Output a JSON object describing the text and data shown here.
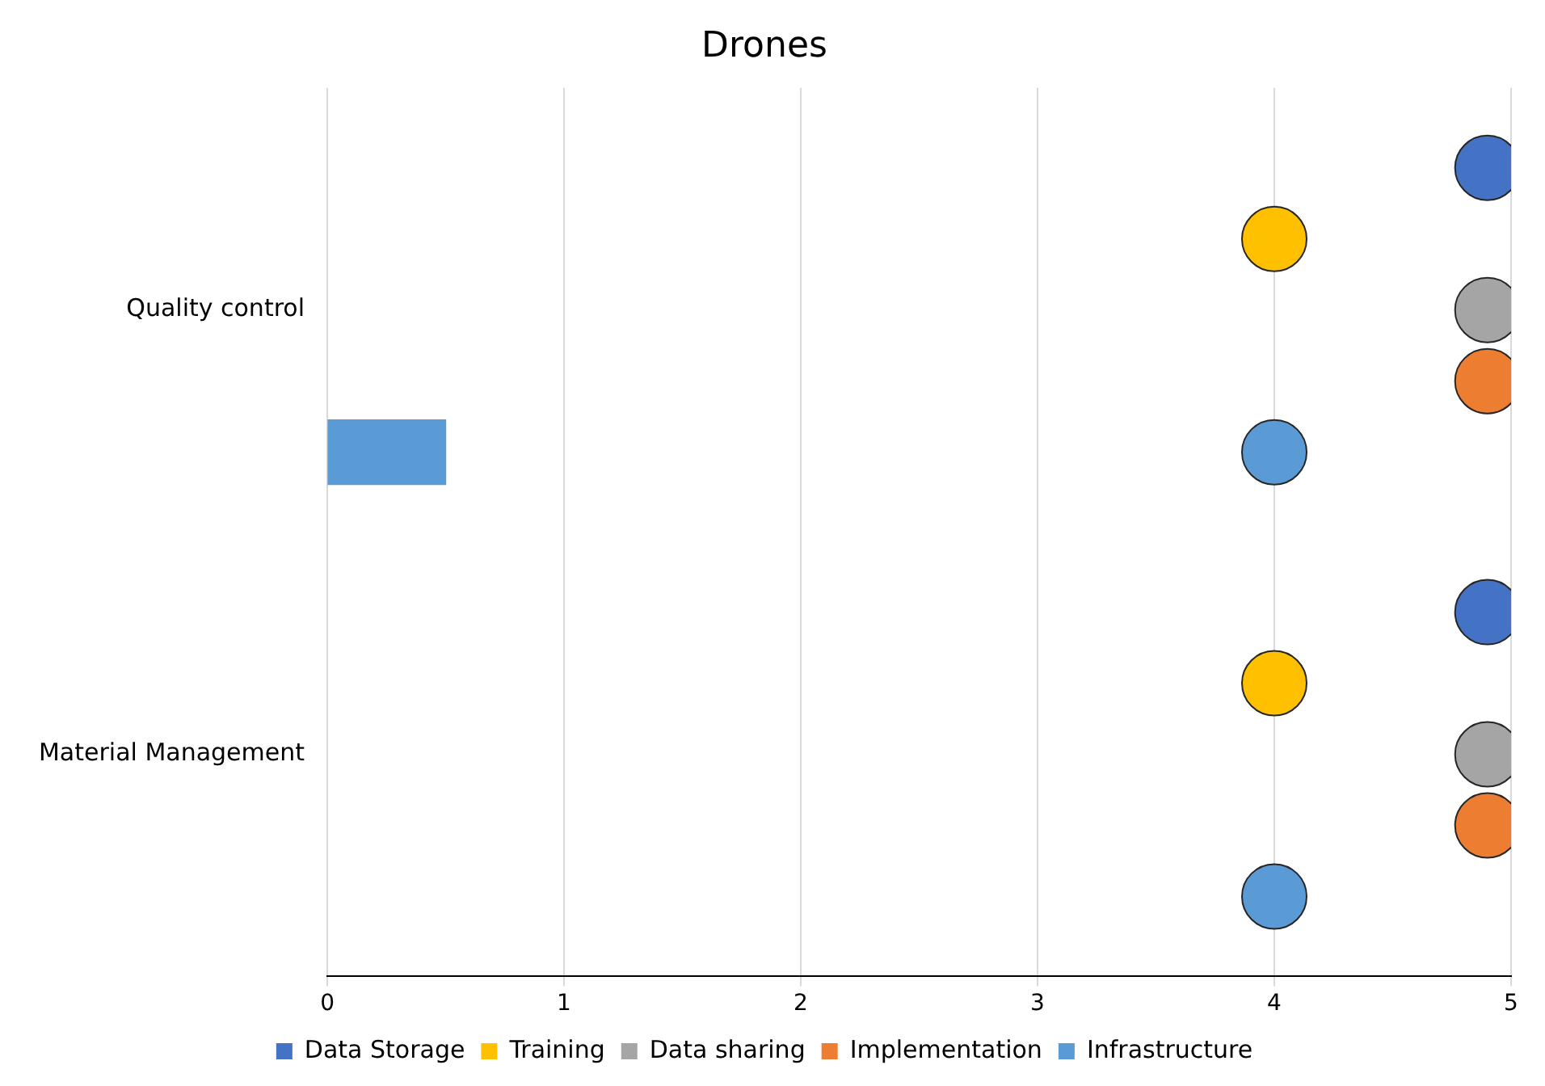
{
  "chart_data": {
    "type": "bar",
    "orientation": "horizontal",
    "title": "Drones",
    "categories": [
      "Quality control",
      "Material Management"
    ],
    "series": [
      {
        "name": "Data Storage",
        "type": "scatter",
        "color": "#4472c4",
        "values": [
          4.9,
          4.9
        ]
      },
      {
        "name": "Training",
        "type": "scatter",
        "color": "#ffc000",
        "values": [
          4,
          4
        ]
      },
      {
        "name": "Data sharing",
        "type": "scatter",
        "color": "#a5a5a5",
        "values": [
          4.9,
          4.9
        ]
      },
      {
        "name": "Implementation",
        "type": "scatter",
        "color": "#ed7d31",
        "values": [
          4.9,
          4.9
        ]
      },
      {
        "name": "Infrastructure",
        "type": "scatter",
        "color": "#5b9bd5",
        "values": [
          4,
          4
        ]
      },
      {
        "type": "bar",
        "color": "#5b9bd5",
        "values": [
          0.5,
          null
        ]
      }
    ],
    "xlim": [
      0,
      5
    ],
    "xticks": [
      0,
      1,
      2,
      3,
      4,
      5
    ],
    "grid": "x",
    "legend": "bottom",
    "marker": "circle"
  }
}
